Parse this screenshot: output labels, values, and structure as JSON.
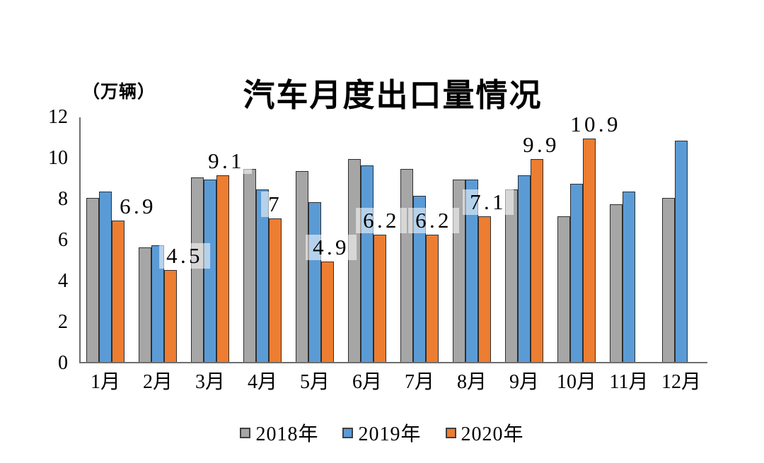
{
  "chart_data": {
    "type": "bar",
    "title": "汽车月度出口量情况",
    "unit_label": "（万辆）",
    "categories": [
      "1月",
      "2月",
      "3月",
      "4月",
      "5月",
      "6月",
      "7月",
      "8月",
      "9月",
      "10月",
      "11月",
      "12月"
    ],
    "series": [
      {
        "name": "2018年",
        "color": "#a6a6a6",
        "values": [
          8.0,
          5.6,
          9.0,
          9.4,
          9.3,
          9.9,
          9.4,
          8.9,
          8.4,
          7.1,
          7.7,
          8.0
        ]
      },
      {
        "name": "2019年",
        "color": "#5b9bd5",
        "values": [
          8.3,
          5.7,
          8.9,
          8.4,
          7.8,
          9.6,
          8.1,
          8.9,
          9.1,
          8.7,
          8.3,
          10.8
        ]
      },
      {
        "name": "2020年",
        "color": "#ed7d31",
        "values": [
          6.9,
          4.5,
          9.1,
          7.0,
          4.9,
          6.2,
          6.2,
          7.1,
          9.9,
          10.9,
          null,
          null
        ],
        "data_labels": [
          "6.9",
          "4.5",
          "9.1",
          "7",
          "4.9",
          "6.2",
          "6.2",
          "7.1",
          "9.9",
          "10.9",
          "",
          ""
        ]
      }
    ],
    "ylabel": "",
    "xlabel": "",
    "ylim": [
      0,
      12
    ],
    "yticks": [
      0,
      2,
      4,
      6,
      8,
      10,
      12
    ],
    "grid": false,
    "legend_position": "bottom",
    "axis_color": "#6e6e6e",
    "label_bg": "rgba(255,255,255,0.55)"
  }
}
